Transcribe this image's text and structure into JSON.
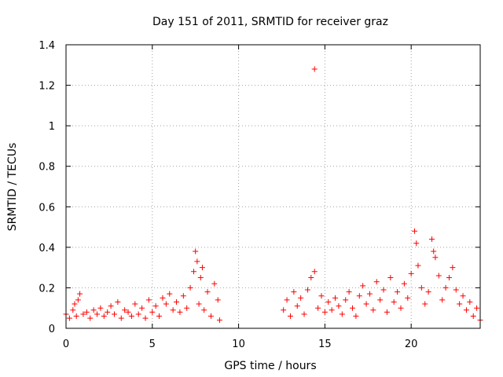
{
  "chart_data": {
    "type": "scatter",
    "title": "Day 151 of 2011, SRMTID for receiver graz",
    "xlabel": "GPS time / hours",
    "ylabel": "SRMTID / TECUs",
    "xlim": [
      0,
      24
    ],
    "ylim": [
      0,
      1.4
    ],
    "xticks": [
      0,
      5,
      10,
      15,
      20
    ],
    "xtick_labels": [
      "0",
      "5",
      "10",
      "15",
      "20"
    ],
    "yticks": [
      0,
      0.2,
      0.4,
      0.6,
      0.8,
      1,
      1.2,
      1.4
    ],
    "ytick_labels": [
      "0",
      "0.2",
      "0.4",
      "0.6",
      "0.8",
      "1",
      "1.2",
      "1.4"
    ],
    "grid": true,
    "marker": "+",
    "color": "#ff0000",
    "series": [
      {
        "name": "SRMTID",
        "points": [
          [
            0.0,
            0.07
          ],
          [
            0.2,
            0.05
          ],
          [
            0.4,
            0.09
          ],
          [
            0.5,
            0.12
          ],
          [
            0.6,
            0.06
          ],
          [
            0.7,
            0.14
          ],
          [
            0.8,
            0.17
          ],
          [
            1.0,
            0.07
          ],
          [
            1.2,
            0.08
          ],
          [
            1.4,
            0.05
          ],
          [
            1.6,
            0.09
          ],
          [
            1.8,
            0.07
          ],
          [
            2.0,
            0.1
          ],
          [
            2.2,
            0.06
          ],
          [
            2.4,
            0.08
          ],
          [
            2.6,
            0.11
          ],
          [
            2.8,
            0.07
          ],
          [
            3.0,
            0.13
          ],
          [
            3.2,
            0.05
          ],
          [
            3.4,
            0.09
          ],
          [
            3.6,
            0.08
          ],
          [
            3.8,
            0.06
          ],
          [
            4.0,
            0.12
          ],
          [
            4.2,
            0.07
          ],
          [
            4.4,
            0.1
          ],
          [
            4.6,
            0.05
          ],
          [
            4.8,
            0.14
          ],
          [
            5.0,
            0.08
          ],
          [
            5.2,
            0.11
          ],
          [
            5.4,
            0.06
          ],
          [
            5.6,
            0.15
          ],
          [
            5.8,
            0.12
          ],
          [
            6.0,
            0.17
          ],
          [
            6.2,
            0.09
          ],
          [
            6.4,
            0.13
          ],
          [
            6.6,
            0.08
          ],
          [
            6.8,
            0.16
          ],
          [
            7.0,
            0.1
          ],
          [
            7.2,
            0.2
          ],
          [
            7.4,
            0.28
          ],
          [
            7.5,
            0.38
          ],
          [
            7.6,
            0.33
          ],
          [
            7.7,
            0.12
          ],
          [
            7.8,
            0.25
          ],
          [
            7.9,
            0.3
          ],
          [
            8.0,
            0.09
          ],
          [
            8.2,
            0.18
          ],
          [
            8.4,
            0.06
          ],
          [
            8.6,
            0.22
          ],
          [
            8.8,
            0.14
          ],
          [
            8.9,
            0.04
          ],
          [
            12.6,
            0.09
          ],
          [
            12.8,
            0.14
          ],
          [
            13.0,
            0.06
          ],
          [
            13.2,
            0.18
          ],
          [
            13.4,
            0.11
          ],
          [
            13.6,
            0.15
          ],
          [
            13.8,
            0.07
          ],
          [
            14.0,
            0.19
          ],
          [
            14.2,
            0.25
          ],
          [
            14.4,
            0.28
          ],
          [
            14.6,
            0.1
          ],
          [
            14.8,
            0.16
          ],
          [
            15.0,
            0.08
          ],
          [
            15.2,
            0.13
          ],
          [
            15.4,
            0.09
          ],
          [
            15.6,
            0.15
          ],
          [
            15.8,
            0.11
          ],
          [
            16.0,
            0.07
          ],
          [
            16.2,
            0.14
          ],
          [
            16.4,
            0.18
          ],
          [
            16.6,
            0.1
          ],
          [
            16.8,
            0.06
          ],
          [
            17.0,
            0.16
          ],
          [
            17.2,
            0.21
          ],
          [
            17.4,
            0.12
          ],
          [
            17.6,
            0.17
          ],
          [
            17.8,
            0.09
          ],
          [
            18.0,
            0.23
          ],
          [
            18.2,
            0.14
          ],
          [
            18.4,
            0.19
          ],
          [
            18.6,
            0.08
          ],
          [
            18.8,
            0.25
          ],
          [
            19.0,
            0.13
          ],
          [
            19.2,
            0.18
          ],
          [
            19.4,
            0.1
          ],
          [
            19.6,
            0.22
          ],
          [
            19.8,
            0.15
          ],
          [
            20.0,
            0.27
          ],
          [
            20.2,
            0.48
          ],
          [
            20.3,
            0.42
          ],
          [
            20.4,
            0.31
          ],
          [
            20.6,
            0.2
          ],
          [
            20.8,
            0.12
          ],
          [
            21.0,
            0.18
          ],
          [
            21.2,
            0.44
          ],
          [
            21.3,
            0.38
          ],
          [
            21.4,
            0.35
          ],
          [
            21.6,
            0.26
          ],
          [
            21.8,
            0.14
          ],
          [
            22.0,
            0.2
          ],
          [
            22.2,
            0.25
          ],
          [
            22.4,
            0.3
          ],
          [
            22.6,
            0.19
          ],
          [
            22.8,
            0.12
          ],
          [
            23.0,
            0.16
          ],
          [
            23.2,
            0.09
          ],
          [
            23.4,
            0.13
          ],
          [
            23.6,
            0.06
          ],
          [
            23.8,
            0.1
          ],
          [
            24.0,
            0.04
          ],
          [
            14.4,
            1.28
          ]
        ]
      }
    ]
  }
}
